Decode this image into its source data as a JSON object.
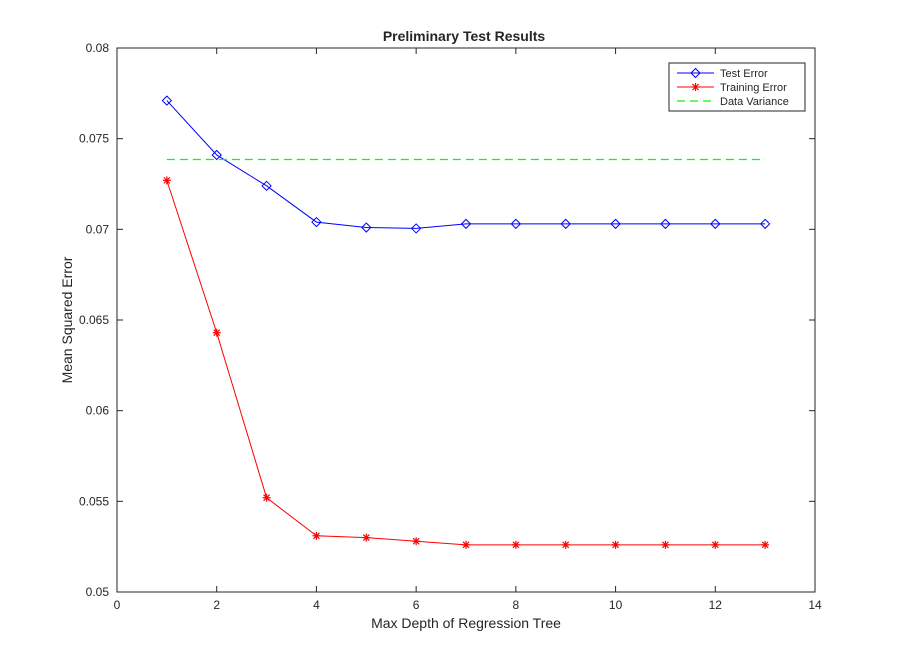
{
  "chart_data": {
    "type": "line",
    "title": "Preliminary Test Results",
    "xlabel": "Max Depth of Regression Tree",
    "ylabel": "Mean Squared Error",
    "xlim": [
      0,
      14
    ],
    "ylim": [
      0.05,
      0.08
    ],
    "xticks": [
      0,
      2,
      4,
      6,
      8,
      10,
      12,
      14
    ],
    "yticks": [
      0.05,
      0.055,
      0.06,
      0.065,
      0.07,
      0.075,
      0.08
    ],
    "ytick_labels": [
      "0.05",
      "0.055",
      "0.06",
      "0.065",
      "0.07",
      "0.075",
      "0.08"
    ],
    "grid": false,
    "legend_position": "top-right",
    "x": [
      1,
      2,
      3,
      4,
      5,
      6,
      7,
      8,
      9,
      10,
      11,
      12,
      13
    ],
    "series": [
      {
        "name": "Test Error",
        "color": "#0000ff",
        "marker": "diamond",
        "line_style": "solid",
        "values": [
          0.0771,
          0.0741,
          0.0724,
          0.0704,
          0.0701,
          0.07005,
          0.0703,
          0.0703,
          0.0703,
          0.0703,
          0.0703,
          0.0703,
          0.0703
        ]
      },
      {
        "name": "Training Error",
        "color": "#ff0000",
        "marker": "asterisk",
        "line_style": "solid",
        "values": [
          0.0727,
          0.0643,
          0.0552,
          0.0531,
          0.053,
          0.0528,
          0.0526,
          0.0526,
          0.0526,
          0.0526,
          0.0526,
          0.0526,
          0.0526
        ]
      },
      {
        "name": "Data Variance",
        "color": "#00ff00",
        "marker": "none",
        "line_style": "dashed",
        "values": [
          0.07385,
          0.07385,
          0.07385,
          0.07385,
          0.07385,
          0.07385,
          0.07385,
          0.07385,
          0.07385,
          0.07385,
          0.07385,
          0.07385,
          0.07385
        ]
      }
    ]
  }
}
